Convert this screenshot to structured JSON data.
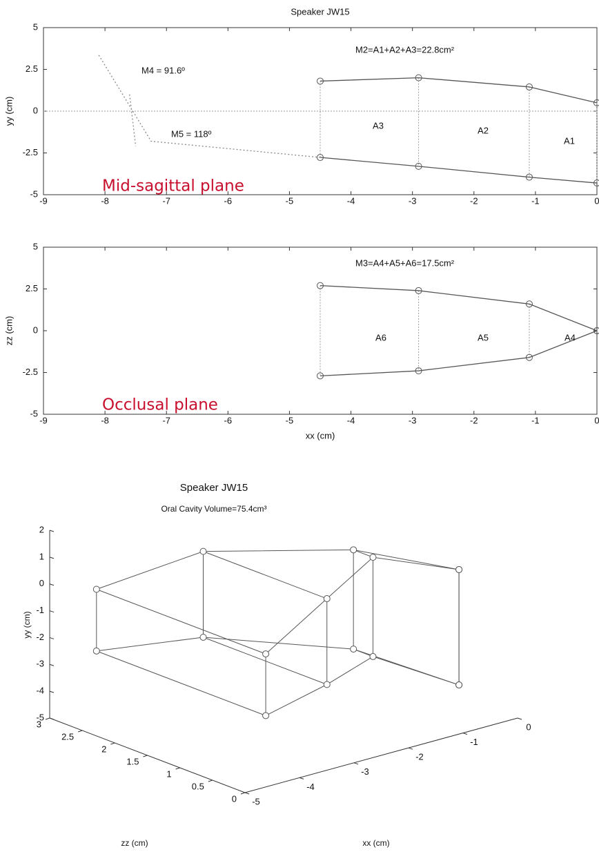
{
  "chart_data": [
    {
      "type": "line",
      "title": "Speaker JW15",
      "y_label": "yy (cm)",
      "xlim": [
        -9,
        0
      ],
      "ylim": [
        -5,
        5
      ],
      "xticks": [
        -9,
        -8,
        -7,
        -6,
        -5,
        -4,
        -3,
        -2,
        -1,
        0
      ],
      "yticks": [
        -5,
        -2.5,
        0,
        2.5,
        5
      ],
      "zero_line": true,
      "connectors": true,
      "series": [
        {
          "color": "#555555",
          "style": "solid",
          "marker": "circle",
          "x": [
            -4.5,
            -2.9,
            -1.1,
            0
          ],
          "values": [
            1.8,
            2.0,
            1.45,
            0.5
          ]
        },
        {
          "color": "#555555",
          "style": "solid",
          "marker": "circle",
          "x": [
            -4.5,
            -2.9,
            -1.1,
            0
          ],
          "values": [
            -2.77,
            -3.3,
            -3.95,
            -4.3
          ]
        },
        {
          "color": "#888888",
          "style": "dotted",
          "x": [
            -8.1,
            -7.25,
            -4.5
          ],
          "values": [
            3.35,
            -1.8,
            -2.77
          ]
        },
        {
          "color": "#888888",
          "style": "dotted",
          "x": [
            -7.6,
            -7.5
          ],
          "values": [
            1.0,
            -2.1
          ]
        }
      ],
      "annotations": [
        "M4 = 91.6º",
        "M5 = 118º",
        "M2=A1+A2+A3=22.8cm²",
        "A3",
        "A2",
        "A1",
        "Mid-sagittal plane"
      ]
    },
    {
      "type": "line",
      "x_label": "xx (cm)",
      "y_label": "zz (cm)",
      "xlim": [
        -9,
        0
      ],
      "ylim": [
        -5,
        5
      ],
      "xticks": [
        -9,
        -8,
        -7,
        -6,
        -5,
        -4,
        -3,
        -2,
        -1,
        0
      ],
      "yticks": [
        -5,
        -2.5,
        0,
        2.5,
        5
      ],
      "zero_line": false,
      "connectors": true,
      "series": [
        {
          "color": "#555555",
          "style": "solid",
          "marker": "circle",
          "x": [
            -4.5,
            -2.9,
            -1.1,
            0
          ],
          "values": [
            2.7,
            2.4,
            1.6,
            0
          ]
        },
        {
          "color": "#555555",
          "style": "solid",
          "marker": "circle",
          "x": [
            -4.5,
            -2.9,
            -1.1,
            0
          ],
          "values": [
            -2.7,
            -2.4,
            -1.6,
            0
          ]
        }
      ],
      "annotations": [
        "M3=A4+A5+A6=17.5cm²",
        "A6",
        "A5",
        "A4",
        "Occlusal plane"
      ]
    },
    {
      "type": "wireframe3d",
      "title": "Speaker JW15",
      "subtitle": "Oral Cavity Volume=75.4cm³",
      "x_label": "xx (cm)",
      "y_label": "yy (cm)",
      "z_label": "zz (cm)",
      "xlim": [
        -5,
        0
      ],
      "ylim": [
        -5,
        2
      ],
      "zlim": [
        0,
        3
      ],
      "xticks": [
        -5,
        -4,
        -3,
        -2,
        -1,
        0
      ],
      "yticks": [
        -5,
        -4,
        -3,
        -2,
        -1,
        0,
        1,
        2
      ],
      "zticks": [
        0,
        0.5,
        1,
        1.5,
        2,
        2.5,
        3
      ],
      "color": "#555555",
      "x": [
        -4.5,
        -2.9,
        -1.1,
        0
      ],
      "y_top": [
        -0.2,
        0.6,
        0.4,
        -0.3
      ],
      "y_bottom": [
        -2.5,
        -2.6,
        -3.3,
        -4.6
      ],
      "z_far": [
        2.7,
        2.4,
        1.6,
        0.9
      ],
      "z_near": [
        0.1,
        0.5,
        1.3,
        0.9
      ]
    }
  ]
}
